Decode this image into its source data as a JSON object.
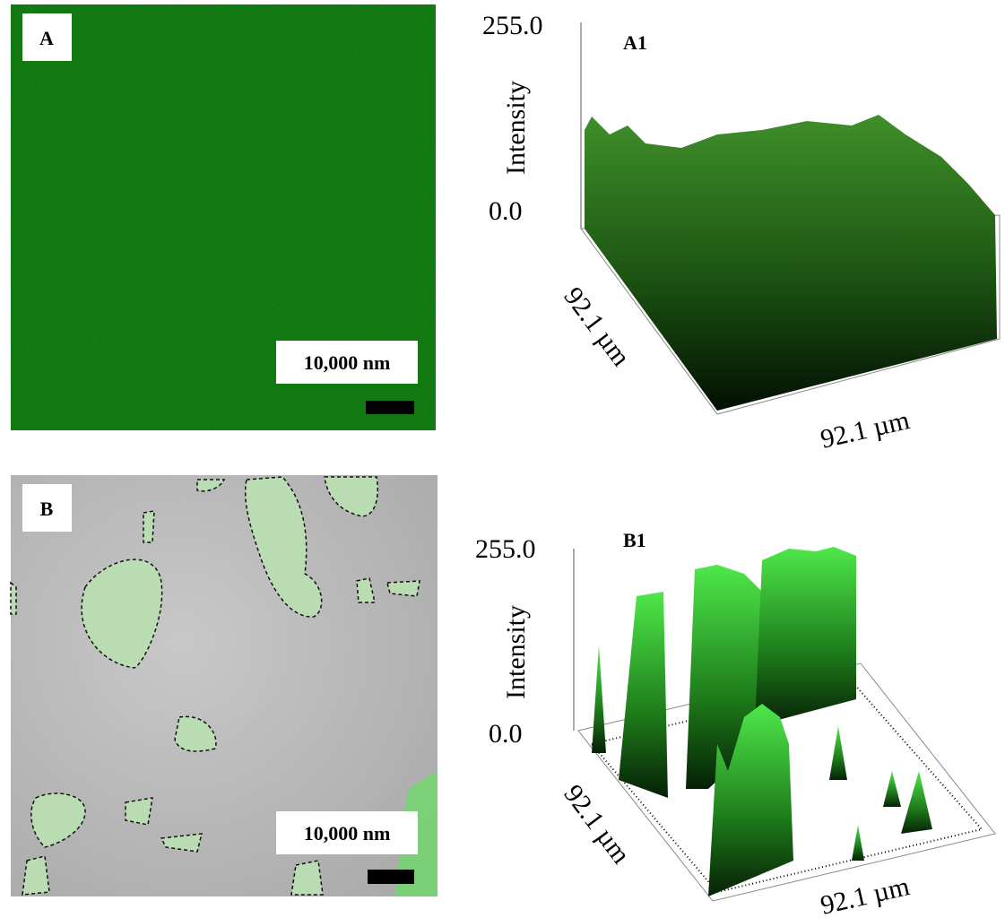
{
  "panels": [
    {
      "label": "A",
      "scale_bar": "10,000 nm"
    },
    {
      "label": "A1",
      "z_max": "255.0",
      "z_min": "0.0",
      "z_label": "Intensity",
      "y_label": "92.1 µm",
      "x_label": "92.1 µm"
    },
    {
      "label": "B",
      "scale_bar": "10,000 nm"
    },
    {
      "label": "B1",
      "z_max": "255.0",
      "z_min": "0.0",
      "z_label": "Intensity",
      "y_label": "92.1 µm",
      "x_label": "92.1 µm"
    }
  ]
}
